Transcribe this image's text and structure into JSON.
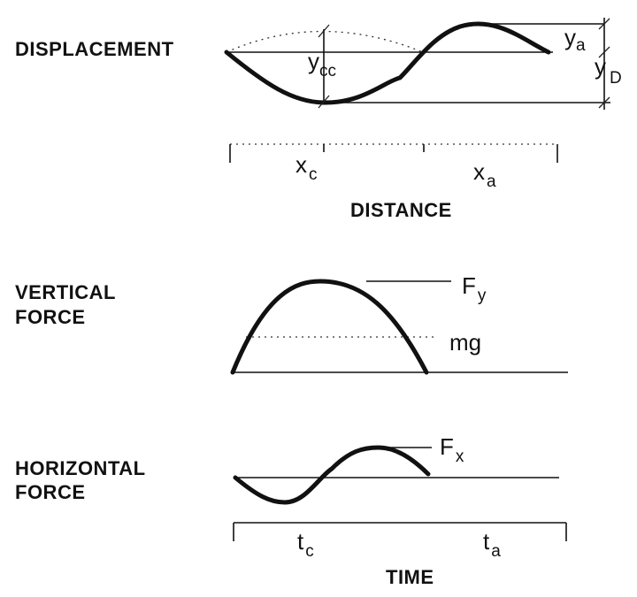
{
  "panels": {
    "displacement": {
      "title": "DISPLACEMENT",
      "y_cc": {
        "base": "y",
        "sub": "cc"
      },
      "y_a": {
        "base": "y",
        "sub": "a"
      },
      "y_D": {
        "base": "y",
        "sub": "D"
      }
    },
    "distance_axis": {
      "x_c": {
        "base": "x",
        "sub": "c"
      },
      "x_a": {
        "base": "x",
        "sub": "a"
      },
      "label": "DISTANCE"
    },
    "vertical_force": {
      "title_line1": "VERTICAL",
      "title_line2": "FORCE",
      "F_y": {
        "base": "F",
        "sub": "y"
      },
      "mg": "mg"
    },
    "horizontal_force": {
      "title_line1": "HORIZONTAL",
      "title_line2": "FORCE",
      "F_x": {
        "base": "F",
        "sub": "x"
      }
    },
    "time_axis": {
      "t_c": {
        "base": "t",
        "sub": "c"
      },
      "t_a": {
        "base": "t",
        "sub": "a"
      },
      "label": "TIME"
    }
  },
  "colors": {
    "ink": "#111111",
    "paper": "#ffffff"
  }
}
